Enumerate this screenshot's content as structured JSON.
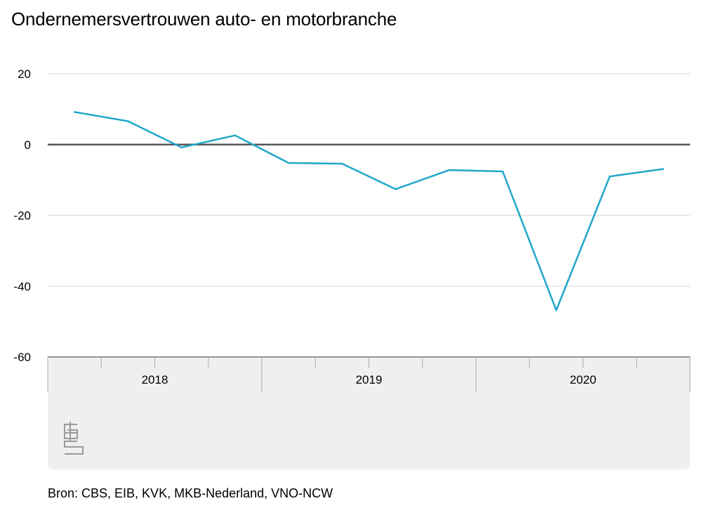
{
  "title": "Ondernemersvertrouwen auto- en motorbranche",
  "source": "Bron: CBS, EIB, KVK, MKB-Nederland, VNO-NCW",
  "logo": "cbs",
  "colors": {
    "line": "#1fa7c9",
    "zero_line": "#555555",
    "grid": "#e3e3e3",
    "axis_panel": "#efefef"
  },
  "chart_data": {
    "type": "line",
    "title": "Ondernemersvertrouwen auto- en motorbranche",
    "xlabel": "",
    "ylabel": "",
    "ylim": [
      -60,
      20
    ],
    "yticks": [
      20,
      0,
      -20,
      -40,
      -60
    ],
    "grid": true,
    "categories": [
      "2018",
      "2019",
      "2020"
    ],
    "x": [
      "2018-Q1",
      "2018-Q2",
      "2018-Q3",
      "2018-Q4",
      "2019-Q1",
      "2019-Q2",
      "2019-Q3",
      "2019-Q4",
      "2020-Q1",
      "2020-Q2",
      "2020-Q3",
      "2020-Q4"
    ],
    "series": [
      {
        "values": [
          9.2,
          6.6,
          -0.8,
          2.6,
          -5.2,
          -5.4,
          -12.6,
          -7.2,
          -7.6,
          -46.8,
          -9.0,
          -6.9
        ]
      }
    ]
  }
}
